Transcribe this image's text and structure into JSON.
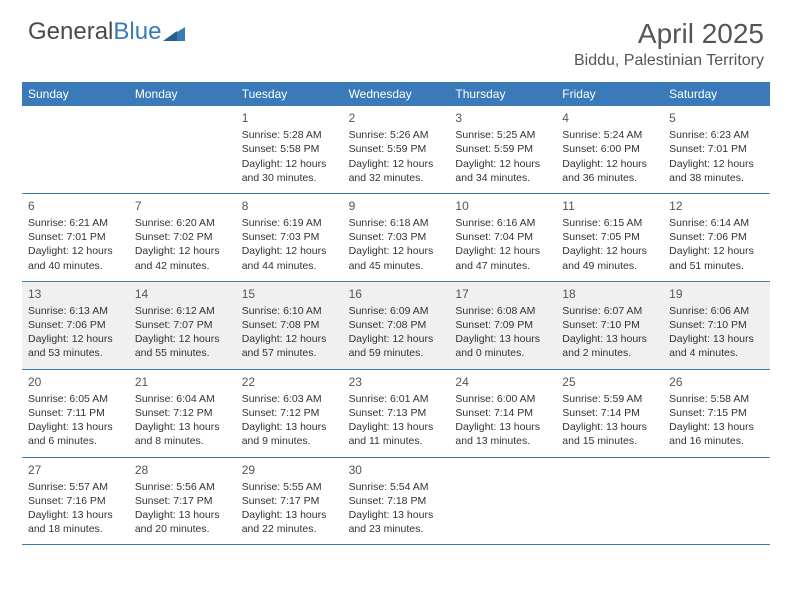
{
  "logo": {
    "part1": "General",
    "part2": "Blue"
  },
  "title": "April 2025",
  "location": "Biddu, Palestinian Territory",
  "colors": {
    "header_bg": "#3a7ab8",
    "header_text": "#ffffff",
    "border": "#3a7ab8",
    "shaded_row": "#f0f0f0",
    "text": "#333333",
    "muted": "#555555",
    "page_bg": "#ffffff"
  },
  "day_labels": [
    "Sunday",
    "Monday",
    "Tuesday",
    "Wednesday",
    "Thursday",
    "Friday",
    "Saturday"
  ],
  "weeks": [
    {
      "shaded": false,
      "cells": [
        {
          "date": "",
          "lines": []
        },
        {
          "date": "",
          "lines": []
        },
        {
          "date": "1",
          "lines": [
            "Sunrise: 5:28 AM",
            "Sunset: 5:58 PM",
            "Daylight: 12 hours",
            "and 30 minutes."
          ]
        },
        {
          "date": "2",
          "lines": [
            "Sunrise: 5:26 AM",
            "Sunset: 5:59 PM",
            "Daylight: 12 hours",
            "and 32 minutes."
          ]
        },
        {
          "date": "3",
          "lines": [
            "Sunrise: 5:25 AM",
            "Sunset: 5:59 PM",
            "Daylight: 12 hours",
            "and 34 minutes."
          ]
        },
        {
          "date": "4",
          "lines": [
            "Sunrise: 5:24 AM",
            "Sunset: 6:00 PM",
            "Daylight: 12 hours",
            "and 36 minutes."
          ]
        },
        {
          "date": "5",
          "lines": [
            "Sunrise: 6:23 AM",
            "Sunset: 7:01 PM",
            "Daylight: 12 hours",
            "and 38 minutes."
          ]
        }
      ]
    },
    {
      "shaded": false,
      "cells": [
        {
          "date": "6",
          "lines": [
            "Sunrise: 6:21 AM",
            "Sunset: 7:01 PM",
            "Daylight: 12 hours",
            "and 40 minutes."
          ]
        },
        {
          "date": "7",
          "lines": [
            "Sunrise: 6:20 AM",
            "Sunset: 7:02 PM",
            "Daylight: 12 hours",
            "and 42 minutes."
          ]
        },
        {
          "date": "8",
          "lines": [
            "Sunrise: 6:19 AM",
            "Sunset: 7:03 PM",
            "Daylight: 12 hours",
            "and 44 minutes."
          ]
        },
        {
          "date": "9",
          "lines": [
            "Sunrise: 6:18 AM",
            "Sunset: 7:03 PM",
            "Daylight: 12 hours",
            "and 45 minutes."
          ]
        },
        {
          "date": "10",
          "lines": [
            "Sunrise: 6:16 AM",
            "Sunset: 7:04 PM",
            "Daylight: 12 hours",
            "and 47 minutes."
          ]
        },
        {
          "date": "11",
          "lines": [
            "Sunrise: 6:15 AM",
            "Sunset: 7:05 PM",
            "Daylight: 12 hours",
            "and 49 minutes."
          ]
        },
        {
          "date": "12",
          "lines": [
            "Sunrise: 6:14 AM",
            "Sunset: 7:06 PM",
            "Daylight: 12 hours",
            "and 51 minutes."
          ]
        }
      ]
    },
    {
      "shaded": true,
      "cells": [
        {
          "date": "13",
          "lines": [
            "Sunrise: 6:13 AM",
            "Sunset: 7:06 PM",
            "Daylight: 12 hours",
            "and 53 minutes."
          ]
        },
        {
          "date": "14",
          "lines": [
            "Sunrise: 6:12 AM",
            "Sunset: 7:07 PM",
            "Daylight: 12 hours",
            "and 55 minutes."
          ]
        },
        {
          "date": "15",
          "lines": [
            "Sunrise: 6:10 AM",
            "Sunset: 7:08 PM",
            "Daylight: 12 hours",
            "and 57 minutes."
          ]
        },
        {
          "date": "16",
          "lines": [
            "Sunrise: 6:09 AM",
            "Sunset: 7:08 PM",
            "Daylight: 12 hours",
            "and 59 minutes."
          ]
        },
        {
          "date": "17",
          "lines": [
            "Sunrise: 6:08 AM",
            "Sunset: 7:09 PM",
            "Daylight: 13 hours",
            "and 0 minutes."
          ]
        },
        {
          "date": "18",
          "lines": [
            "Sunrise: 6:07 AM",
            "Sunset: 7:10 PM",
            "Daylight: 13 hours",
            "and 2 minutes."
          ]
        },
        {
          "date": "19",
          "lines": [
            "Sunrise: 6:06 AM",
            "Sunset: 7:10 PM",
            "Daylight: 13 hours",
            "and 4 minutes."
          ]
        }
      ]
    },
    {
      "shaded": false,
      "cells": [
        {
          "date": "20",
          "lines": [
            "Sunrise: 6:05 AM",
            "Sunset: 7:11 PM",
            "Daylight: 13 hours",
            "and 6 minutes."
          ]
        },
        {
          "date": "21",
          "lines": [
            "Sunrise: 6:04 AM",
            "Sunset: 7:12 PM",
            "Daylight: 13 hours",
            "and 8 minutes."
          ]
        },
        {
          "date": "22",
          "lines": [
            "Sunrise: 6:03 AM",
            "Sunset: 7:12 PM",
            "Daylight: 13 hours",
            "and 9 minutes."
          ]
        },
        {
          "date": "23",
          "lines": [
            "Sunrise: 6:01 AM",
            "Sunset: 7:13 PM",
            "Daylight: 13 hours",
            "and 11 minutes."
          ]
        },
        {
          "date": "24",
          "lines": [
            "Sunrise: 6:00 AM",
            "Sunset: 7:14 PM",
            "Daylight: 13 hours",
            "and 13 minutes."
          ]
        },
        {
          "date": "25",
          "lines": [
            "Sunrise: 5:59 AM",
            "Sunset: 7:14 PM",
            "Daylight: 13 hours",
            "and 15 minutes."
          ]
        },
        {
          "date": "26",
          "lines": [
            "Sunrise: 5:58 AM",
            "Sunset: 7:15 PM",
            "Daylight: 13 hours",
            "and 16 minutes."
          ]
        }
      ]
    },
    {
      "shaded": false,
      "cells": [
        {
          "date": "27",
          "lines": [
            "Sunrise: 5:57 AM",
            "Sunset: 7:16 PM",
            "Daylight: 13 hours",
            "and 18 minutes."
          ]
        },
        {
          "date": "28",
          "lines": [
            "Sunrise: 5:56 AM",
            "Sunset: 7:17 PM",
            "Daylight: 13 hours",
            "and 20 minutes."
          ]
        },
        {
          "date": "29",
          "lines": [
            "Sunrise: 5:55 AM",
            "Sunset: 7:17 PM",
            "Daylight: 13 hours",
            "and 22 minutes."
          ]
        },
        {
          "date": "30",
          "lines": [
            "Sunrise: 5:54 AM",
            "Sunset: 7:18 PM",
            "Daylight: 13 hours",
            "and 23 minutes."
          ]
        },
        {
          "date": "",
          "lines": []
        },
        {
          "date": "",
          "lines": []
        },
        {
          "date": "",
          "lines": []
        }
      ]
    }
  ]
}
